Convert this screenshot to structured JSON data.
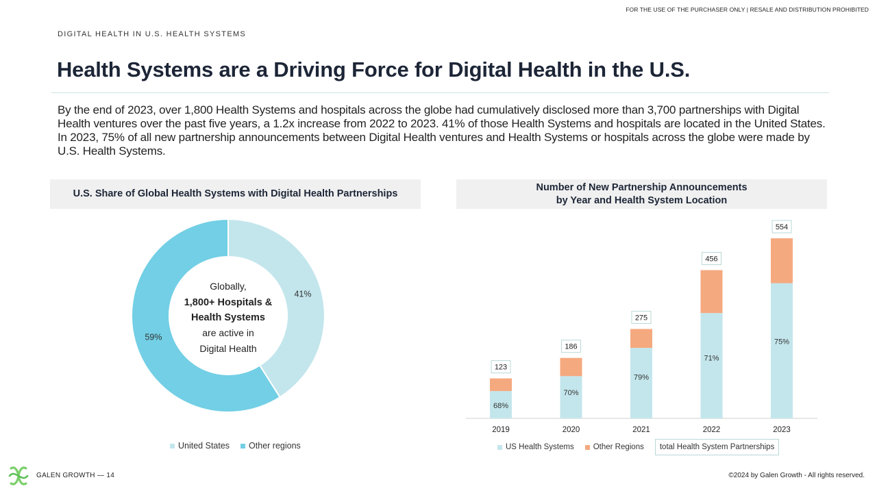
{
  "notice": "FOR THE USE OF THE PURCHASER ONLY | RESALE AND DISTRIBUTION PROHIBITED",
  "eyebrow": "DIGITAL HEALTH IN U.S. HEALTH SYSTEMS",
  "title": "Health Systems are a Driving Force for Digital Health in the U.S.",
  "intro": "By the end of 2023, over 1,800 Health Systems and hospitals across the globe had cumulatively disclosed more than 3,700 partnerships with Digital Health ventures over the past five years, a 1.2x increase from 2022 to 2023. 41% of those Health Systems and hospitals are located in the United States. In 2023, 75% of all new partnership announcements between Digital Health ventures and Health Systems or hospitals across the globe were made by U.S. Health Systems.",
  "colors": {
    "us": "#c3e6ec",
    "other_donut": "#72cfe5",
    "other_bar": "#f5a97f",
    "axis": "#d0d0d0",
    "box_border": "#b9d8d6"
  },
  "donut_center": {
    "line1": "Globally,",
    "line2": "1,800+ Hospitals &",
    "line3": "Health Systems",
    "line4": "are active in",
    "line5": "Digital Health"
  },
  "footer": {
    "brand": "GALEN GROWTH",
    "separator": "—",
    "page": "14",
    "copyright": "©2024 by Galen Growth  - All rights reserved."
  },
  "chart_data": [
    {
      "type": "pie",
      "title": "U.S. Share of Global Health Systems with Digital Health Partnerships",
      "categories": [
        "United States",
        "Other regions"
      ],
      "values": [
        41,
        59
      ],
      "labels": [
        "41%",
        "59%"
      ],
      "legend": "bottom"
    },
    {
      "type": "bar",
      "stacked": true,
      "title_line1": "Number of New Partnership Announcements",
      "title_line2": "by Year and Health System Location",
      "categories": [
        "2019",
        "2020",
        "2021",
        "2022",
        "2023"
      ],
      "totals": [
        123,
        186,
        275,
        456,
        554
      ],
      "total_labels": [
        "123",
        "186",
        "275",
        "456",
        "554"
      ],
      "series": [
        {
          "name": "US Health Systems",
          "values": [
            84,
            130,
            217,
            324,
            416
          ],
          "labels": [
            "68%",
            "70%",
            "79%",
            "71%",
            "75%"
          ]
        },
        {
          "name": "Other Regions",
          "values": [
            39,
            56,
            58,
            132,
            138
          ]
        }
      ],
      "total_series_name": "total Health System Partnerships",
      "ylim": [
        0,
        554
      ],
      "legend": "bottom"
    }
  ]
}
